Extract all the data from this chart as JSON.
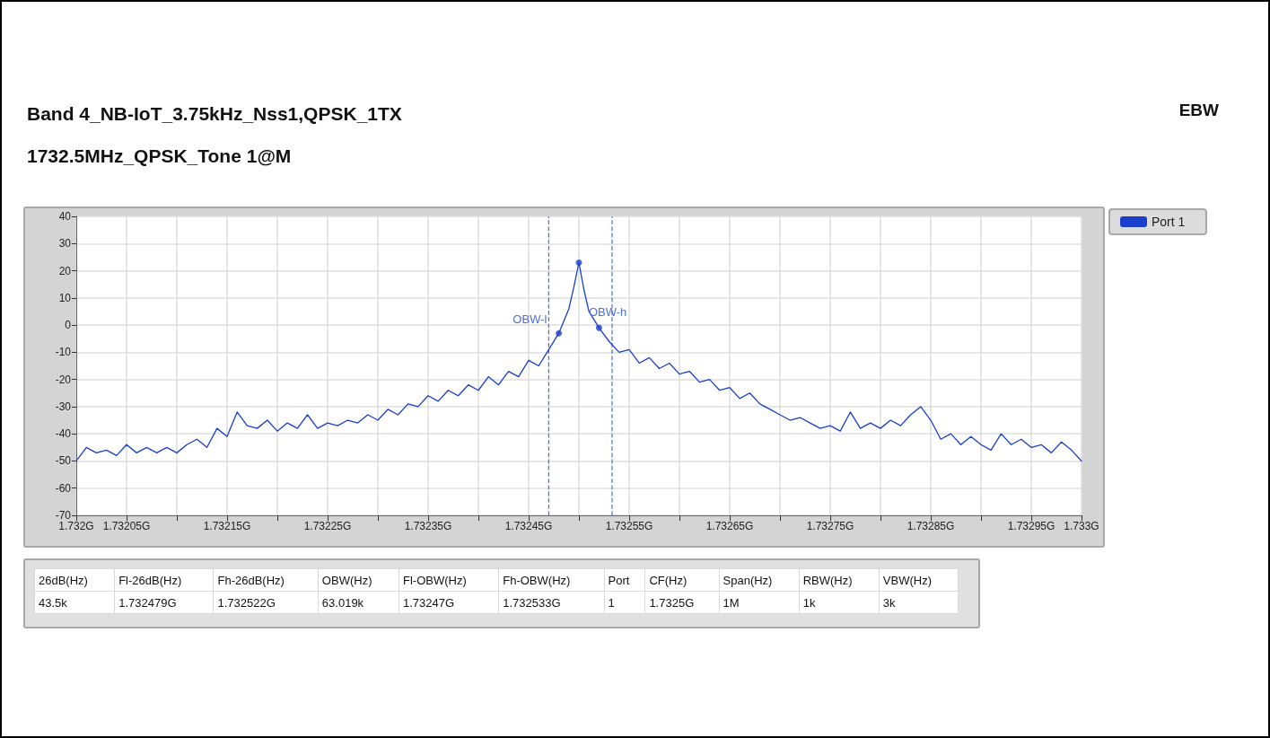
{
  "chart_data": {
    "type": "line",
    "title": "Band 4_NB-IoT_3.75kHz_Nss1,QPSK_1TX",
    "subtitle": "1732.5MHz_QPSK_Tone 1@M",
    "annotations": [
      "EBW",
      "26dB(Hz)",
      "Fl-26dB(Hz)",
      "Fh-26dB(Hz)",
      "OBW(Hz)",
      "Fl-OBW(Hz)",
      "Fh-OBW(Hz)",
      "Port",
      "CF(Hz)",
      "Span(Hz)",
      "RBW(Hz)",
      "VBW(Hz)",
      "43.5k",
      "1.732479G",
      "1.732522G",
      "63.019k",
      "1.73247G",
      "1.732533G",
      "1",
      "1.7325G",
      "1M",
      "1k",
      "3k"
    ],
    "series": [
      {
        "name": "Port 1",
        "color": "#1a3fcc",
        "marker": "none",
        "x": [
          1.732,
          1.73201,
          1.73202,
          1.73203,
          1.73204,
          1.73205,
          1.73206,
          1.73207,
          1.73208,
          1.73209,
          1.7321,
          1.73211,
          1.73212,
          1.73213,
          1.73214,
          1.73215,
          1.73216,
          1.73217,
          1.73218,
          1.73219,
          1.7322,
          1.73221,
          1.73222,
          1.73223,
          1.73224,
          1.73225,
          1.73226,
          1.73227,
          1.73228,
          1.73229,
          1.7323,
          1.73231,
          1.73232,
          1.73233,
          1.73234,
          1.73235,
          1.73236,
          1.73237,
          1.73238,
          1.73239,
          1.7324,
          1.73241,
          1.73242,
          1.73243,
          1.73244,
          1.73245,
          1.73246,
          1.73247,
          1.73248,
          1.73249,
          1.732495,
          1.7325,
          1.732505,
          1.73251,
          1.73252,
          1.73253,
          1.73254,
          1.73255,
          1.73256,
          1.73257,
          1.73258,
          1.73259,
          1.7326,
          1.73261,
          1.73262,
          1.73263,
          1.73264,
          1.73265,
          1.73266,
          1.73267,
          1.73268,
          1.73269,
          1.7327,
          1.73271,
          1.73272,
          1.73273,
          1.73274,
          1.73275,
          1.73276,
          1.73277,
          1.73278,
          1.73279,
          1.7328,
          1.73281,
          1.73282,
          1.73283,
          1.73284,
          1.73285,
          1.73286,
          1.73287,
          1.73288,
          1.73289,
          1.7329,
          1.73291,
          1.73292,
          1.73293,
          1.73294,
          1.73295,
          1.73296,
          1.73297,
          1.73298,
          1.73299,
          1.733
        ],
        "values": [
          -50,
          -45,
          -47,
          -46,
          -48,
          -44,
          -47,
          -45,
          -47,
          -45,
          -47,
          -44,
          -42,
          -45,
          -38,
          -41,
          -32,
          -37,
          -38,
          -35,
          -39,
          -36,
          -38,
          -33,
          -38,
          -36,
          -37,
          -35,
          -36,
          -33,
          -35,
          -31,
          -33,
          -29,
          -30,
          -26,
          -28,
          -24,
          -26,
          -22,
          -24,
          -19,
          -22,
          -17,
          -19,
          -13,
          -15,
          -9,
          -3,
          6,
          14,
          23,
          13,
          5,
          -1,
          -6,
          -10,
          -9,
          -14,
          -12,
          -16,
          -14,
          -18,
          -17,
          -21,
          -20,
          -24,
          -23,
          -27,
          -25,
          -29,
          -31,
          -33,
          -35,
          -34,
          -36,
          -38,
          -37,
          -39,
          -32,
          -38,
          -36,
          -38,
          -35,
          -37,
          -33,
          -30,
          -35,
          -42,
          -40,
          -44,
          -41,
          -44,
          -46,
          -40,
          -44,
          -42,
          -45,
          -44,
          -47,
          -43,
          -46,
          -50
        ]
      },
      {
        "type": "scatter",
        "color": "#1a3fcc",
        "marker": "circle",
        "x": [
          1.73248,
          1.7325,
          1.73252
        ],
        "values": [
          -3,
          23,
          -1
        ]
      }
    ],
    "ref_lines": [
      {
        "axis": "x",
        "value": 1.73247,
        "label": "OBW-l",
        "color": "#4a6fe0",
        "line_style": "dashed"
      },
      {
        "axis": "x",
        "value": 1.732533,
        "label": "OBW-h",
        "color": "#4a6fe0",
        "line_style": "dashed"
      }
    ],
    "xlim": [
      1.732,
      1.733
    ],
    "xticks": [
      {
        "value": 1.732,
        "label": "1.732G"
      },
      {
        "value": 1.73205,
        "label": "1.73205G"
      },
      {
        "value": 1.7321,
        "label": null
      },
      {
        "value": 1.73215,
        "label": "1.73215G"
      },
      {
        "value": 1.7322,
        "label": null
      },
      {
        "value": 1.73225,
        "label": "1.73225G"
      },
      {
        "value": 1.7323,
        "label": null
      },
      {
        "value": 1.73235,
        "label": "1.73235G"
      },
      {
        "value": 1.7324,
        "label": null
      },
      {
        "value": 1.73245,
        "label": "1.73245G"
      },
      {
        "value": 1.7325,
        "label": null
      },
      {
        "value": 1.73255,
        "label": "1.73255G"
      },
      {
        "value": 1.7326,
        "label": null
      },
      {
        "value": 1.73265,
        "label": "1.73265G"
      },
      {
        "value": 1.7327,
        "label": null
      },
      {
        "value": 1.73275,
        "label": "1.73275G"
      },
      {
        "value": 1.7328,
        "label": null
      },
      {
        "value": 1.73285,
        "label": "1.73285G"
      },
      {
        "value": 1.7329,
        "label": null
      },
      {
        "value": 1.73295,
        "label": "1.73295G"
      },
      {
        "value": 1.733,
        "label": "1.733G"
      }
    ],
    "ylim": [
      -70,
      40
    ],
    "yticks": [
      -70,
      -60,
      -50,
      -40,
      -30,
      -20,
      -10,
      0,
      10,
      20,
      30,
      40
    ],
    "grid": true,
    "legend": "top right"
  }
}
